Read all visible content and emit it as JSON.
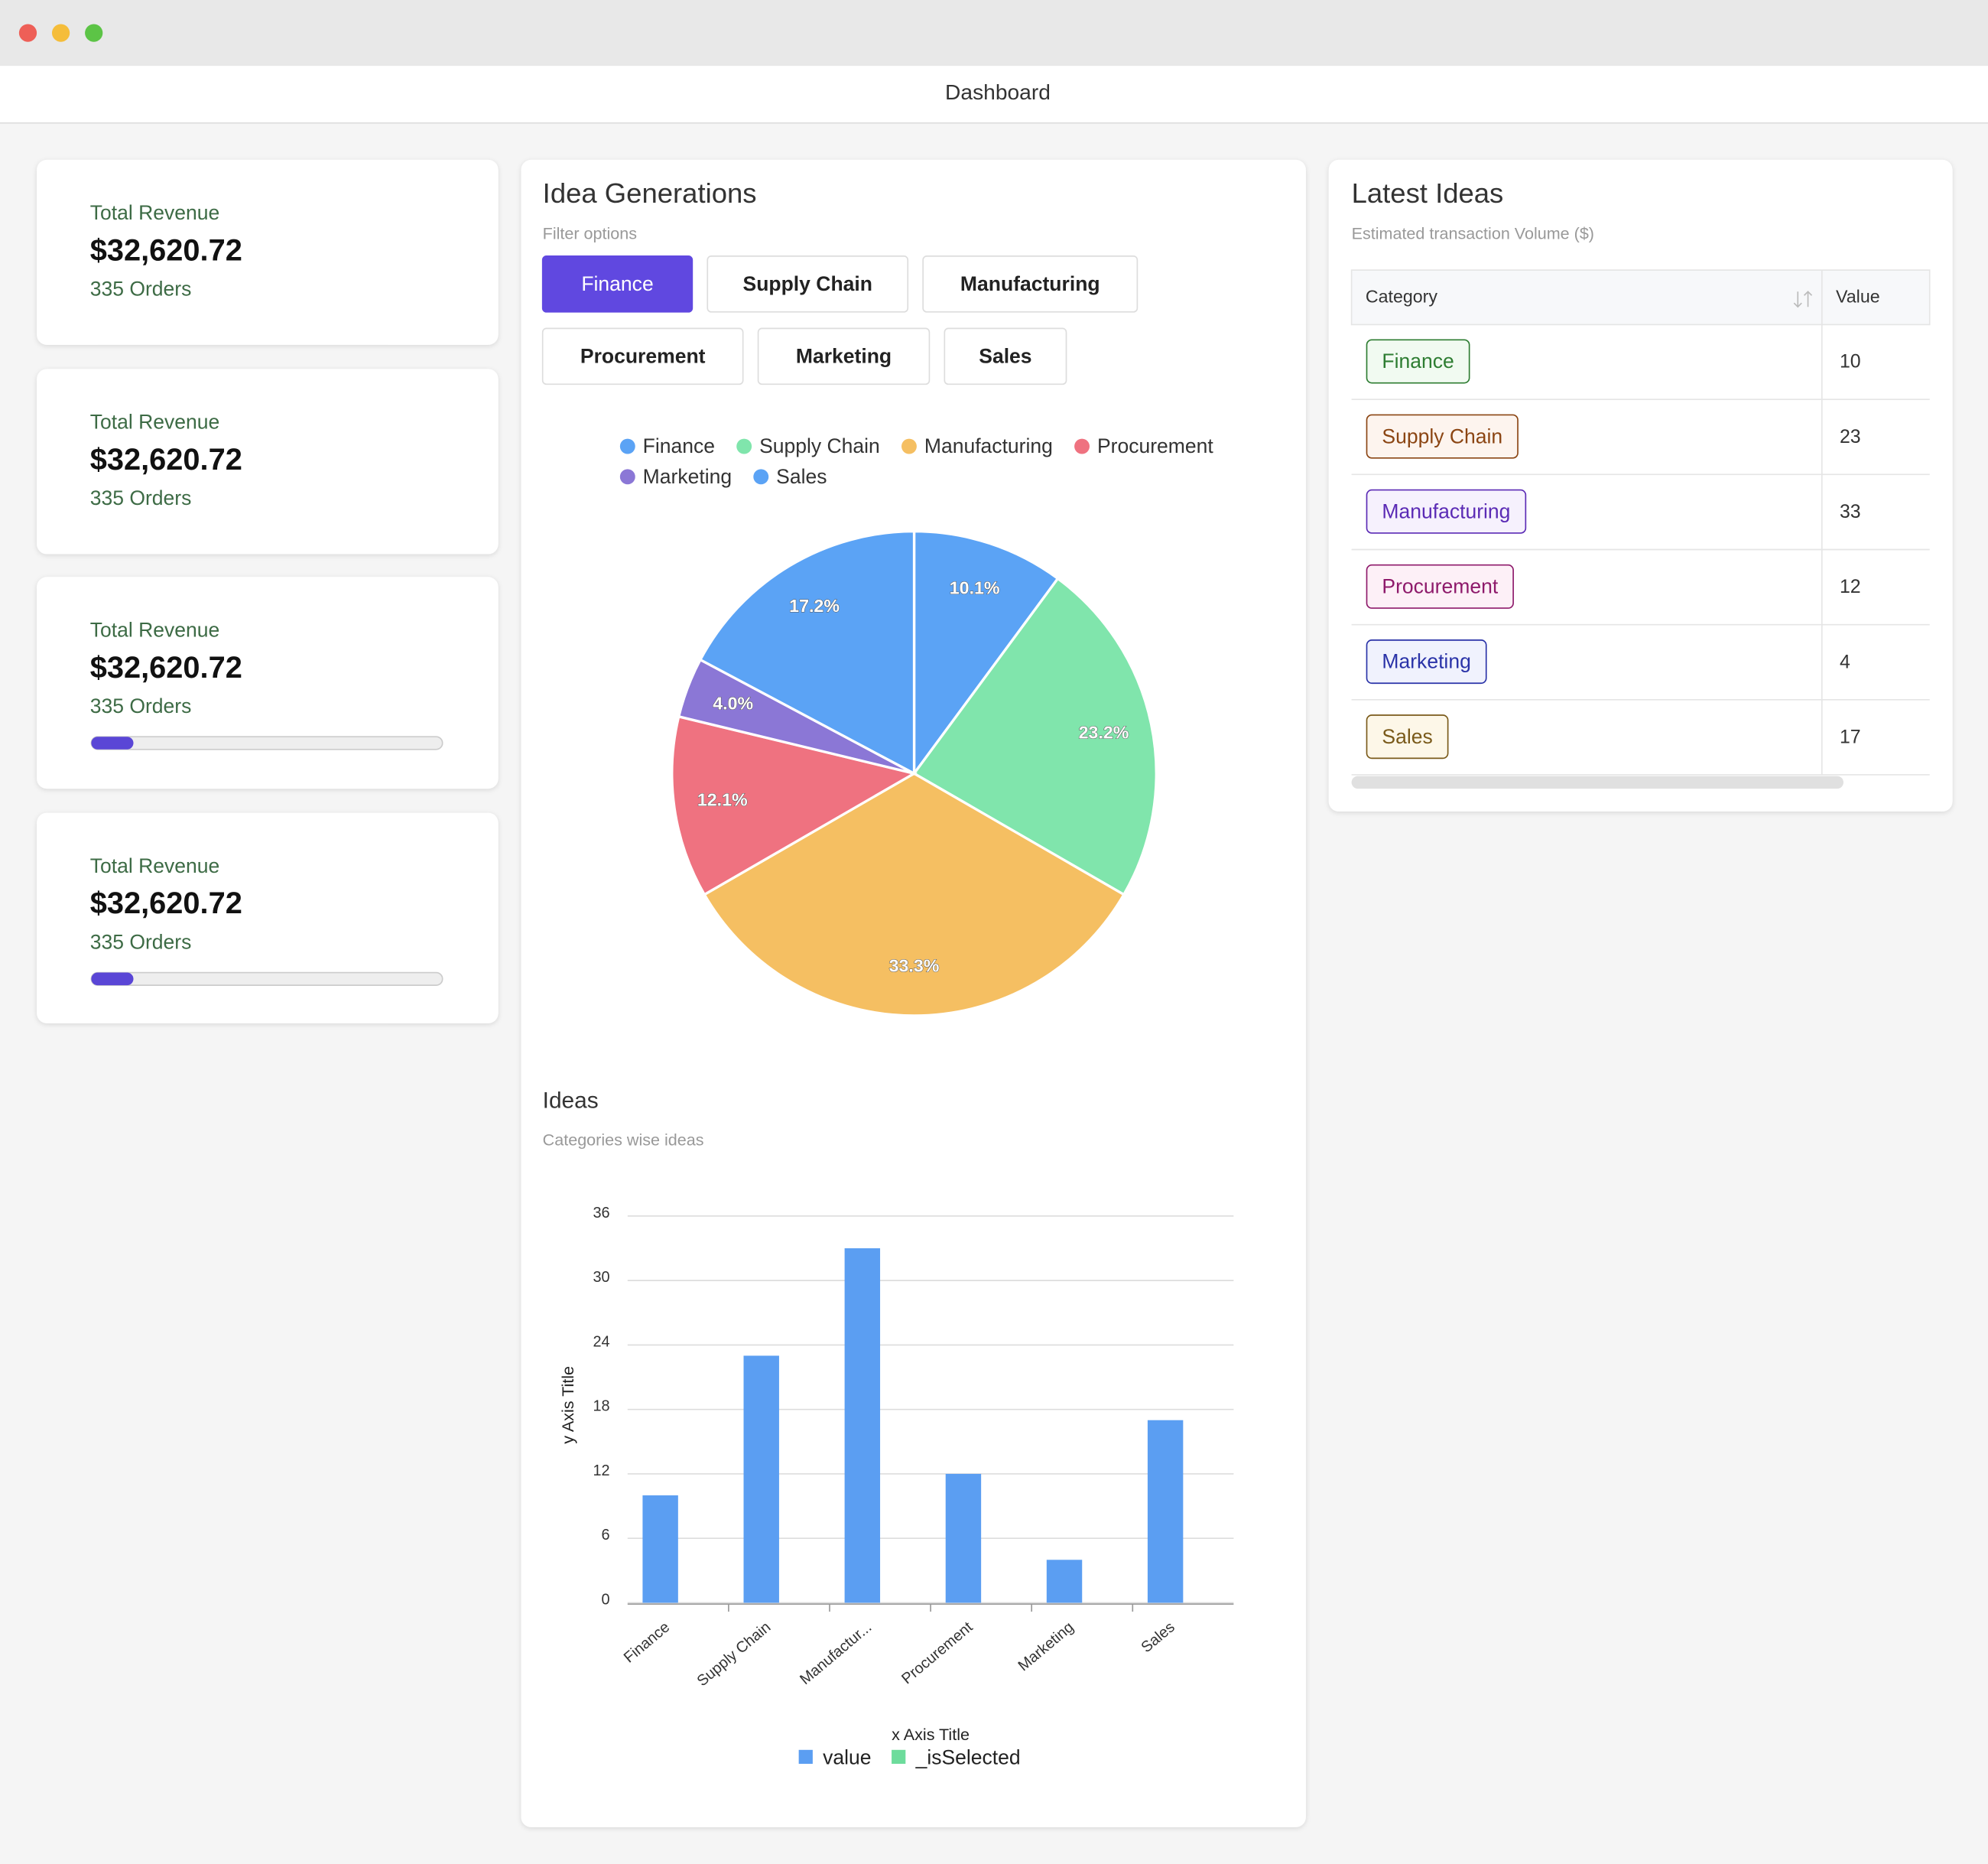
{
  "window": {
    "title": "Dashboard"
  },
  "stat_cards": [
    {
      "label": "Total Revenue",
      "value": "$32,620.72",
      "orders": "335 Orders"
    },
    {
      "label": "Total Revenue",
      "value": "$32,620.72",
      "orders": "335 Orders"
    },
    {
      "label": "Total Revenue",
      "value": "$32,620.72",
      "orders": "335 Orders",
      "progress": 12
    },
    {
      "label": "Total Revenue",
      "value": "$32,620.72",
      "orders": "335 Orders",
      "progress": 12
    }
  ],
  "idea_panel": {
    "title": "Idea Generations",
    "filter_label": "Filter options",
    "filters": [
      "Finance",
      "Supply Chain",
      "Manufacturing",
      "Procurement",
      "Marketing",
      "Sales"
    ],
    "active_filter": 0
  },
  "chart_data": [
    {
      "type": "pie",
      "categories": [
        "Finance",
        "Supply Chain",
        "Manufacturing",
        "Procurement",
        "Marketing",
        "Sales"
      ],
      "values": [
        10.1,
        23.2,
        33.3,
        12.1,
        4.0,
        17.2
      ],
      "value_labels": [
        "10.1%",
        "23.2%",
        "33.3%",
        "12.1%",
        "4.0%",
        "17.2%"
      ],
      "colors": [
        "#5ba3f5",
        "#80e5ac",
        "#f5bf62",
        "#ef7280",
        "#8b77d6",
        "#5ba3f5"
      ]
    },
    {
      "type": "bar",
      "title": "Ideas",
      "subtitle": "Categories wise ideas",
      "categories": [
        "Finance",
        "Supply Chain",
        "Manufactur...",
        "Procurement",
        "Marketing",
        "Sales"
      ],
      "series": [
        {
          "name": "value",
          "color": "#5b9ef2",
          "values": [
            10,
            23,
            33,
            12,
            4,
            17
          ]
        },
        {
          "name": "_isSelected",
          "color": "#6ddc9c",
          "values": [
            null,
            null,
            null,
            null,
            null,
            null
          ]
        }
      ],
      "xlabel": "x Axis Title",
      "ylabel": "y Axis Title",
      "ylim": [
        0,
        36
      ],
      "yticks": [
        0,
        6,
        12,
        18,
        24,
        30,
        36
      ],
      "grid": true
    }
  ],
  "latest": {
    "title": "Latest Ideas",
    "subtitle": "Estimated transaction Volume ($)",
    "columns": [
      "Category",
      "Value"
    ],
    "rows": [
      [
        "Finance",
        10
      ],
      [
        "Supply Chain",
        23
      ],
      [
        "Manufacturing",
        33
      ],
      [
        "Procurement",
        12
      ],
      [
        "Marketing",
        4
      ],
      [
        "Sales",
        17
      ]
    ]
  }
}
